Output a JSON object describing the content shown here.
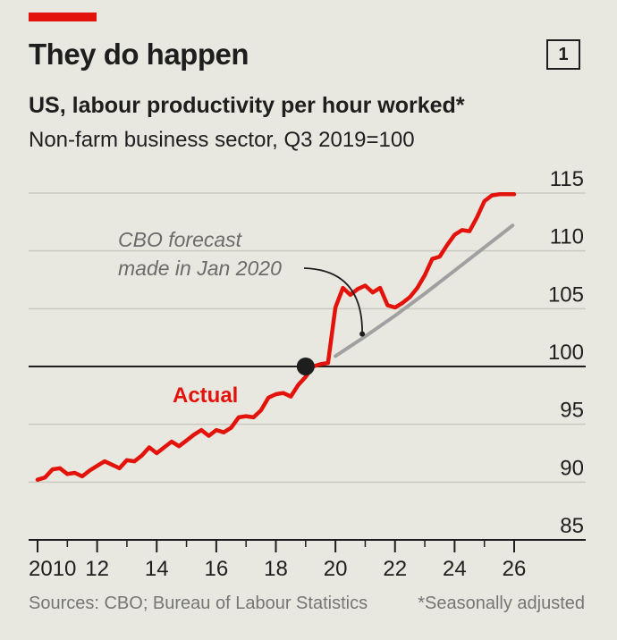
{
  "header": {
    "chart_number": "1",
    "title": "They do happen",
    "subtitle": "US, labour productivity per hour worked*",
    "subsubtitle": "Non-farm business sector, Q3 2019=100"
  },
  "footer": {
    "sources": "Sources: CBO; Bureau of Labour Statistics",
    "note": "*Seasonally adjusted"
  },
  "colors": {
    "actual": "#e3120b",
    "forecast": "#a0a0a0",
    "grid": "#c9c9c1",
    "baseline": "#1e1e1e",
    "background": "#e9e8e0"
  },
  "chart_data": {
    "type": "line",
    "title": "They do happen",
    "ylabel": "",
    "xlim": [
      2010,
      2026
    ],
    "ylim": [
      85,
      115
    ],
    "grid": true,
    "y_ticks": [
      {
        "value": 115,
        "label": "115"
      },
      {
        "value": 110,
        "label": "110"
      },
      {
        "value": 105,
        "label": "105"
      },
      {
        "value": 100,
        "label": "100"
      },
      {
        "value": 95,
        "label": "95"
      },
      {
        "value": 90,
        "label": "90"
      },
      {
        "value": 85,
        "label": "85"
      }
    ],
    "x_ticks": [
      {
        "value": 2010,
        "label": "2010"
      },
      {
        "value": 2012,
        "label": "12"
      },
      {
        "value": 2014,
        "label": "14"
      },
      {
        "value": 2016,
        "label": "16"
      },
      {
        "value": 2018,
        "label": "18"
      },
      {
        "value": 2020,
        "label": "20"
      },
      {
        "value": 2022,
        "label": "22"
      },
      {
        "value": 2024,
        "label": "24"
      },
      {
        "value": 2026,
        "label": "26"
      }
    ],
    "x_minor_ticks": [
      2011,
      2013,
      2015,
      2017,
      2019,
      2021,
      2023,
      2025
    ],
    "baseline": 100,
    "annotations": [
      {
        "text_lines": [
          "CBO forecast",
          "made in Jan 2020"
        ],
        "target": {
          "x": 2020.9,
          "y": 102.5
        }
      },
      {
        "text": "Actual",
        "series": "Actual"
      }
    ],
    "marker": {
      "x": 2019.0,
      "y": 100
    },
    "series": [
      {
        "name": "Actual",
        "x": [
          2010.0,
          2010.25,
          2010.5,
          2010.75,
          2011.0,
          2011.25,
          2011.5,
          2011.75,
          2012.0,
          2012.25,
          2012.5,
          2012.75,
          2013.0,
          2013.25,
          2013.5,
          2013.75,
          2014.0,
          2014.25,
          2014.5,
          2014.75,
          2015.0,
          2015.25,
          2015.5,
          2015.75,
          2016.0,
          2016.25,
          2016.5,
          2016.75,
          2017.0,
          2017.25,
          2017.5,
          2017.75,
          2018.0,
          2018.25,
          2018.5,
          2018.75,
          2019.0,
          2019.25,
          2019.5,
          2019.75,
          2020.0,
          2020.25,
          2020.5,
          2020.75,
          2021.0,
          2021.25,
          2021.5,
          2021.75,
          2022.0,
          2022.25,
          2022.5,
          2022.75,
          2023.0,
          2023.25,
          2023.5,
          2023.75,
          2024.0,
          2024.25,
          2024.5,
          2024.75,
          2025.0,
          2025.25,
          2025.5,
          2025.75,
          2026.0
        ],
        "y": [
          90.2,
          90.4,
          91.1,
          91.2,
          90.7,
          90.8,
          90.5,
          91.0,
          91.4,
          91.8,
          91.5,
          91.2,
          91.9,
          91.8,
          92.3,
          93.0,
          92.5,
          93.0,
          93.5,
          93.1,
          93.6,
          94.1,
          94.5,
          94.0,
          94.5,
          94.3,
          94.7,
          95.6,
          95.7,
          95.6,
          96.2,
          97.3,
          97.6,
          97.7,
          97.4,
          98.4,
          99.1,
          100.0,
          100.2,
          100.3,
          105.1,
          106.8,
          106.2,
          106.7,
          107.0,
          106.4,
          106.8,
          105.3,
          105.1,
          105.5,
          106.0,
          106.8,
          107.9,
          109.3,
          109.5,
          110.5,
          111.4,
          111.8,
          111.7,
          112.9,
          114.3,
          114.8,
          114.9,
          114.9,
          114.9
        ]
      },
      {
        "name": "CBO forecast",
        "x": [
          2020.0,
          2021.0,
          2022.0,
          2023.0,
          2024.0,
          2025.0,
          2025.95
        ],
        "y": [
          100.9,
          102.6,
          104.4,
          106.3,
          108.3,
          110.3,
          112.2
        ]
      }
    ]
  }
}
